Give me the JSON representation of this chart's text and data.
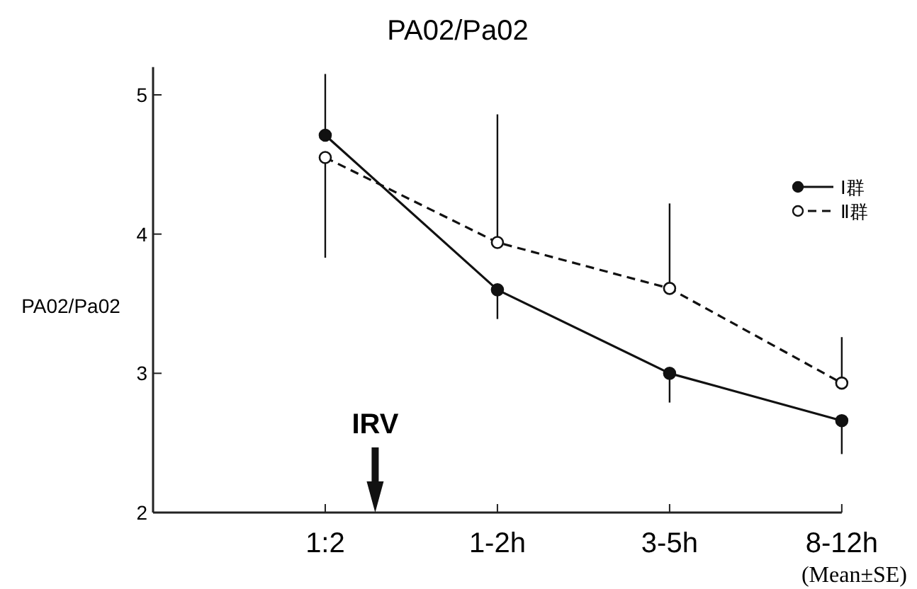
{
  "chart_data": {
    "type": "line",
    "title": "PA02/Pa02",
    "ylabel": "PA02/Pa02",
    "categories": [
      "1:2",
      "1-2h",
      "3-5h",
      "8-12h"
    ],
    "series": [
      {
        "name": "Ⅰ群",
        "color": "#111111",
        "marker": "circle",
        "line_style": "solid",
        "values": [
          4.71,
          3.6,
          3.0,
          2.66
        ],
        "errors": [
          [
            4.71,
            5.15
          ],
          [
            3.39,
            3.6
          ],
          [
            2.79,
            3.0
          ],
          [
            2.42,
            2.66
          ]
        ]
      },
      {
        "name": "Ⅱ群",
        "color": "#111111",
        "marker": "circle",
        "line_style": "dashed",
        "values": [
          4.55,
          3.94,
          3.61,
          2.93
        ],
        "errors": [
          [
            3.83,
            4.55
          ],
          [
            3.94,
            4.86
          ],
          [
            3.61,
            4.22
          ],
          [
            2.93,
            3.26
          ]
        ]
      }
    ],
    "ylim": [
      2,
      5.2
    ],
    "yticks": [
      2,
      3,
      4,
      5
    ],
    "grid": false,
    "legend": "top right",
    "annotations": [
      "IRV",
      "(Mean±SE)"
    ]
  }
}
